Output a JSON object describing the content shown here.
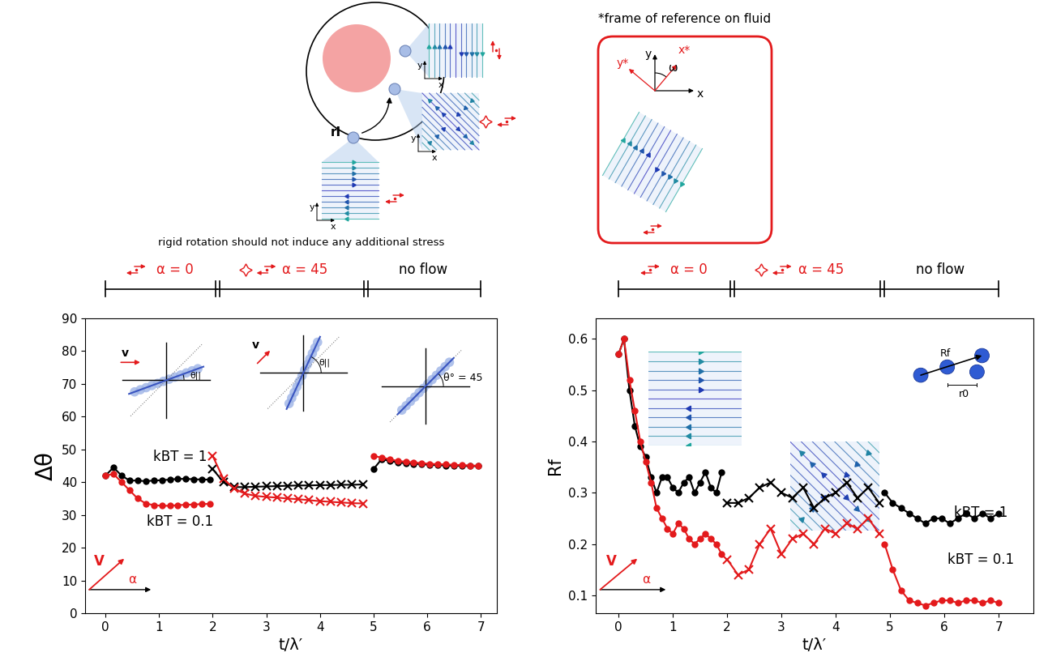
{
  "diagram": {
    "frame_title": "*frame of reference on fluid",
    "caption": "rigid rotation should not induce any additional stress",
    "position_label": "rI",
    "inset_axis_labels": {
      "x": "x",
      "y": "y"
    },
    "frame_axes": {
      "x": "x",
      "y": "y",
      "x_rotated": "x*",
      "y_rotated": "y*",
      "angle": "ω"
    }
  },
  "chart_data": [
    {
      "type": "line",
      "xlabel": "t/λ′",
      "ylabel": "Δθ",
      "xlim": [
        -0.38,
        7.3
      ],
      "ylim": [
        0,
        90
      ],
      "xticks": [
        0,
        1,
        2,
        3,
        4,
        5,
        6,
        7
      ],
      "yticks": [
        0,
        10,
        20,
        30,
        40,
        50,
        60,
        70,
        80,
        90
      ],
      "phases": [
        {
          "label": "α = 0",
          "start": 0,
          "end": 2.09,
          "color": "#e31a1c"
        },
        {
          "label": "α = 45",
          "start": 2.09,
          "end": 4.86,
          "color": "#e31a1c"
        },
        {
          "label": "no flow",
          "start": 4.86,
          "end": 7,
          "color": "black"
        }
      ],
      "angle_insets": [
        {
          "velocity_label": "v",
          "angle_label": "θ||"
        },
        {
          "velocity_label": "v",
          "angle_label": "θ||"
        },
        {
          "angle_label": "θ° = 45"
        }
      ],
      "direction_key": {
        "vector_label": "V",
        "angle_label": "α"
      },
      "series": [
        {
          "name": "kBT = 1",
          "color": "black",
          "segments": [
            {
              "marker": "circle",
              "x": [
                0,
                0.15,
                0.3,
                0.45,
                0.6,
                0.75,
                0.9,
                1.05,
                1.2,
                1.35,
                1.5,
                1.65,
                1.8,
                1.95
              ],
              "values": [
                42,
                44.5,
                42,
                40.5,
                40.5,
                40.3,
                40.5,
                40.6,
                40.8,
                41,
                41,
                40.9,
                40.8,
                40.8
              ]
            },
            {
              "marker": "x",
              "x": [
                2.0,
                2.2,
                2.4,
                2.6,
                2.8,
                3.0,
                3.2,
                3.4,
                3.6,
                3.8,
                4.0,
                4.2,
                4.4,
                4.6,
                4.8
              ],
              "values": [
                44,
                40,
                38.5,
                38.5,
                38.6,
                38.7,
                38.8,
                38.9,
                39,
                39,
                39.1,
                39.1,
                39.2,
                39.2,
                39.3
              ]
            },
            {
              "marker": "circle",
              "x": [
                5.0,
                5.15,
                5.3,
                5.45,
                5.6,
                5.75,
                5.9,
                6.05,
                6.2,
                6.35,
                6.5,
                6.65,
                6.8,
                6.95
              ],
              "values": [
                44,
                47,
                46.5,
                46,
                45.8,
                45.6,
                45.5,
                45.3,
                45.2,
                45.1,
                45,
                45,
                44.9,
                44.9
              ]
            }
          ]
        },
        {
          "name": "kBT = 0.1",
          "color": "#e31a1c",
          "segments": [
            {
              "marker": "circle",
              "x": [
                0,
                0.15,
                0.3,
                0.45,
                0.6,
                0.75,
                0.9,
                1.05,
                1.2,
                1.35,
                1.5,
                1.65,
                1.8,
                1.95
              ],
              "values": [
                42,
                42.5,
                40,
                37.5,
                35,
                33.5,
                33,
                32.8,
                32.8,
                33,
                33.1,
                33.2,
                33.3,
                33.4
              ]
            },
            {
              "marker": "x",
              "x": [
                2.0,
                2.2,
                2.4,
                2.6,
                2.8,
                3.0,
                3.2,
                3.4,
                3.6,
                3.8,
                4.0,
                4.2,
                4.4,
                4.6,
                4.8
              ],
              "values": [
                48,
                41,
                38,
                36.5,
                35.8,
                35.5,
                35.3,
                35,
                34.8,
                34.5,
                34.2,
                34,
                33.8,
                33.6,
                33.5
              ]
            },
            {
              "marker": "circle",
              "x": [
                5.0,
                5.15,
                5.3,
                5.45,
                5.6,
                5.75,
                5.9,
                6.05,
                6.2,
                6.35,
                6.5,
                6.65,
                6.8,
                6.95
              ],
              "values": [
                48,
                47.5,
                47,
                46.5,
                46.2,
                46,
                45.8,
                45.6,
                45.5,
                45.4,
                45.3,
                45.2,
                45.1,
                45
              ]
            }
          ]
        }
      ]
    },
    {
      "type": "line",
      "xlabel": "t/λ′",
      "ylabel": "Rf",
      "xlim": [
        -0.42,
        7.64
      ],
      "ylim": [
        0.065,
        0.64
      ],
      "xticks": [
        0,
        1,
        2,
        3,
        4,
        5,
        6,
        7
      ],
      "yticks": [
        0.1,
        0.2,
        0.3,
        0.4,
        0.5,
        0.6
      ],
      "phases": [
        {
          "label": "α = 0",
          "start": 0,
          "end": 2.09,
          "color": "#e31a1c"
        },
        {
          "label": "α = 45",
          "start": 2.09,
          "end": 4.86,
          "color": "#e31a1c"
        },
        {
          "label": "no flow",
          "start": 4.86,
          "end": 7,
          "color": "black"
        }
      ],
      "chain_icon": {
        "vector_label": "Rf",
        "spacing_label": "r0"
      },
      "direction_key": {
        "vector_label": "V",
        "angle_label": "α"
      },
      "series": [
        {
          "name": "kBT = 1",
          "color": "black",
          "segments": [
            {
              "marker": "circle",
              "x": [
                0,
                0.1,
                0.2,
                0.3,
                0.4,
                0.5,
                0.6,
                0.7,
                0.8,
                0.9,
                1.0,
                1.1,
                1.2,
                1.3,
                1.4,
                1.5,
                1.6,
                1.7,
                1.8,
                1.9
              ],
              "values": [
                0.57,
                0.6,
                0.5,
                0.43,
                0.39,
                0.37,
                0.33,
                0.3,
                0.33,
                0.33,
                0.31,
                0.3,
                0.32,
                0.33,
                0.3,
                0.32,
                0.34,
                0.31,
                0.3,
                0.34
              ]
            },
            {
              "marker": "x",
              "x": [
                2.0,
                2.2,
                2.4,
                2.6,
                2.8,
                3.0,
                3.2,
                3.4,
                3.6,
                3.8,
                4.0,
                4.2,
                4.4,
                4.6,
                4.8
              ],
              "values": [
                0.28,
                0.28,
                0.29,
                0.31,
                0.32,
                0.3,
                0.29,
                0.31,
                0.27,
                0.29,
                0.3,
                0.32,
                0.29,
                0.31,
                0.28
              ]
            },
            {
              "marker": "circle",
              "x": [
                4.9,
                5.05,
                5.2,
                5.35,
                5.5,
                5.65,
                5.8,
                5.95,
                6.1,
                6.25,
                6.4,
                6.55,
                6.7,
                6.85,
                7.0
              ],
              "values": [
                0.3,
                0.28,
                0.27,
                0.26,
                0.25,
                0.24,
                0.25,
                0.25,
                0.24,
                0.25,
                0.26,
                0.25,
                0.26,
                0.25,
                0.26
              ]
            }
          ]
        },
        {
          "name": "kBT = 0.1",
          "color": "#e31a1c",
          "segments": [
            {
              "marker": "circle",
              "x": [
                0,
                0.1,
                0.2,
                0.3,
                0.4,
                0.5,
                0.6,
                0.7,
                0.8,
                0.9,
                1.0,
                1.1,
                1.2,
                1.3,
                1.4,
                1.5,
                1.6,
                1.7,
                1.8,
                1.9
              ],
              "values": [
                0.57,
                0.6,
                0.52,
                0.46,
                0.4,
                0.36,
                0.32,
                0.27,
                0.25,
                0.23,
                0.22,
                0.24,
                0.23,
                0.21,
                0.2,
                0.21,
                0.22,
                0.21,
                0.2,
                0.18
              ]
            },
            {
              "marker": "x",
              "x": [
                2.0,
                2.2,
                2.4,
                2.6,
                2.8,
                3.0,
                3.2,
                3.4,
                3.6,
                3.8,
                4.0,
                4.2,
                4.4,
                4.6,
                4.8
              ],
              "values": [
                0.17,
                0.14,
                0.15,
                0.2,
                0.23,
                0.18,
                0.21,
                0.22,
                0.2,
                0.23,
                0.22,
                0.24,
                0.23,
                0.25,
                0.22
              ]
            },
            {
              "marker": "circle",
              "x": [
                4.9,
                5.05,
                5.2,
                5.35,
                5.5,
                5.65,
                5.8,
                5.95,
                6.1,
                6.25,
                6.4,
                6.55,
                6.7,
                6.85,
                7.0
              ],
              "values": [
                0.2,
                0.15,
                0.11,
                0.09,
                0.085,
                0.08,
                0.085,
                0.09,
                0.09,
                0.085,
                0.09,
                0.09,
                0.085,
                0.09,
                0.085
              ]
            }
          ]
        }
      ]
    }
  ]
}
